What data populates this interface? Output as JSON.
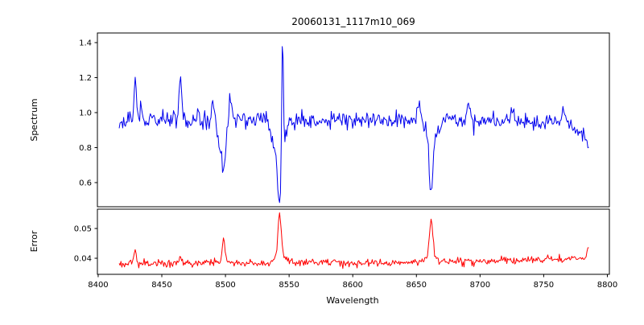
{
  "window": {
    "background_color": "#ffffff",
    "axis_color": "#000000",
    "text_color": "#000000"
  },
  "chart_data": {
    "type": "line",
    "title": "20060131_1117m10_069",
    "legend": "none",
    "grid": false,
    "x_axis": {
      "label": "Wavelength",
      "ticks": [
        "8400",
        "8450",
        "8500",
        "8550",
        "8600",
        "8650",
        "8700",
        "8750",
        "8800"
      ],
      "tick_values": [
        8400,
        8450,
        8500,
        8550,
        8600,
        8650,
        8700,
        8750,
        8800
      ],
      "xlim": [
        8399.4,
        8801.6
      ],
      "data_range": [
        8416.5,
        8786.0
      ]
    },
    "subplots": [
      {
        "name": "spectrum",
        "ylabel": "Spectrum",
        "line_color": "#0000ee",
        "ylim": [
          0.462,
          1.455
        ],
        "yticks": [
          "0.6",
          "0.8",
          "1.0",
          "1.2",
          "1.4"
        ],
        "ytick_values": [
          0.6,
          0.8,
          1.0,
          1.2,
          1.4
        ],
        "x_start": 8416.5,
        "x_end": 8786.0,
        "x_step": 0.7,
        "seed": 20060131,
        "noise_sigma": 0.026,
        "continuum_points": [
          [
            8416.5,
            0.935
          ],
          [
            8435,
            0.955
          ],
          [
            8520,
            0.955
          ],
          [
            8600,
            0.96
          ],
          [
            8660,
            0.955
          ],
          [
            8700,
            0.95
          ],
          [
            8745,
            0.945
          ],
          [
            8768,
            0.93
          ],
          [
            8779,
            0.88
          ],
          [
            8786,
            0.83
          ]
        ],
        "features": [
          {
            "center": 8429.0,
            "amplitude": 0.25,
            "sigma": 1.0,
            "kind": "emission-spike"
          },
          {
            "center": 8433.5,
            "amplitude": 0.09,
            "sigma": 0.9,
            "kind": "emission-spike"
          },
          {
            "center": 8464.5,
            "amplitude": 0.27,
            "sigma": 1.0,
            "kind": "emission-spike"
          },
          {
            "center": 8490.0,
            "amplitude": 0.1,
            "sigma": 1.2,
            "kind": "emission-spike"
          },
          {
            "center": 8494.5,
            "amplitude": -0.12,
            "sigma": 1.2,
            "kind": "absorption-dip"
          },
          {
            "center": 8498.6,
            "amplitude": -0.3,
            "sigma": 1.6,
            "kind": "absorption-dip"
          },
          {
            "center": 8504.0,
            "amplitude": 0.16,
            "sigma": 0.9,
            "kind": "emission-spike"
          },
          {
            "center": 8541.8,
            "amplitude": -0.22,
            "sigma": 4.0,
            "kind": "absorption-dip-wings"
          },
          {
            "center": 8542.6,
            "amplitude": -0.28,
            "sigma": 1.4,
            "kind": "absorption-dip-core"
          },
          {
            "center": 8544.8,
            "amplitude": 0.72,
            "sigma": 0.65,
            "kind": "emission-spike"
          },
          {
            "center": 8652.0,
            "amplitude": 0.1,
            "sigma": 1.2,
            "kind": "emission-spike"
          },
          {
            "center": 8661.6,
            "amplitude": -0.28,
            "sigma": 1.4,
            "kind": "absorption-dip-core"
          },
          {
            "center": 8661.6,
            "amplitude": -0.13,
            "sigma": 3.5,
            "kind": "absorption-dip-wings"
          },
          {
            "center": 8691.0,
            "amplitude": 0.1,
            "sigma": 1.3,
            "kind": "emission-spike"
          },
          {
            "center": 8725.0,
            "amplitude": 0.09,
            "sigma": 1.3,
            "kind": "emission-spike"
          },
          {
            "center": 8765.5,
            "amplitude": 0.11,
            "sigma": 1.5,
            "kind": "emission-spike"
          }
        ]
      },
      {
        "name": "error",
        "ylabel": "Error",
        "xlabel": "Wavelength",
        "line_color": "#ff0000",
        "ylim": [
          0.0346,
          0.0565
        ],
        "yticks": [
          "0.04",
          "0.05"
        ],
        "ytick_values": [
          0.04,
          0.05
        ],
        "x_start": 8416.5,
        "x_end": 8786.0,
        "x_step": 0.7,
        "seed": 1117069,
        "noise_sigma": 0.00065,
        "continuum_points": [
          [
            8416.5,
            0.0383
          ],
          [
            8480,
            0.0384
          ],
          [
            8560,
            0.0385
          ],
          [
            8640,
            0.0386
          ],
          [
            8720,
            0.0392
          ],
          [
            8786,
            0.04
          ]
        ],
        "features": [
          {
            "center": 8429.0,
            "amplitude": 0.0035,
            "sigma": 1.2,
            "kind": "error-spike"
          },
          {
            "center": 8464.5,
            "amplitude": 0.0018,
            "sigma": 1.0,
            "kind": "error-spike"
          },
          {
            "center": 8498.6,
            "amplitude": 0.0075,
            "sigma": 1.3,
            "kind": "error-spike"
          },
          {
            "center": 8542.6,
            "amplitude": 0.0125,
            "sigma": 1.1,
            "kind": "error-spike"
          },
          {
            "center": 8542.6,
            "amplitude": 0.004,
            "sigma": 3.0,
            "kind": "error-spike-wings"
          },
          {
            "center": 8661.6,
            "amplitude": 0.0105,
            "sigma": 1.2,
            "kind": "error-spike"
          },
          {
            "center": 8661.6,
            "amplitude": 0.0035,
            "sigma": 3.0,
            "kind": "error-spike-wings"
          },
          {
            "center": 8785.0,
            "amplitude": 0.004,
            "sigma": 1.0,
            "kind": "error-spike"
          }
        ]
      }
    ]
  }
}
